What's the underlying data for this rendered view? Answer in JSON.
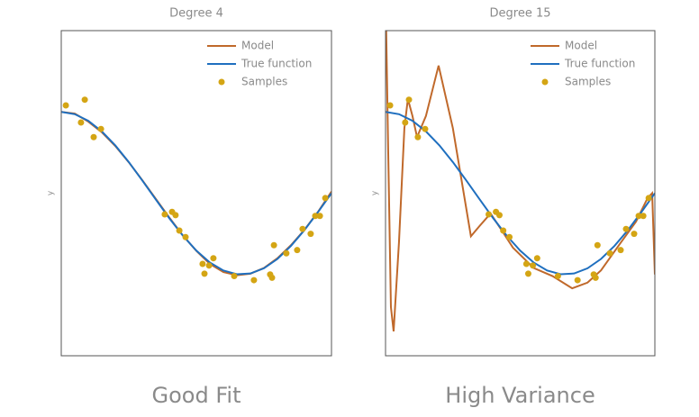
{
  "chart_data": [
    {
      "type": "line",
      "title": "Degree 4",
      "ylabel": "y",
      "caption": "Good Fit",
      "xlim": [
        0,
        1
      ],
      "ylim": [
        -2,
        2
      ],
      "legend": "upper right",
      "series": [
        {
          "name": "Model",
          "color": "#c0692b",
          "x": [
            0,
            0.05,
            0.1,
            0.15,
            0.2,
            0.25,
            0.3,
            0.35,
            0.4,
            0.45,
            0.5,
            0.55,
            0.6,
            0.65,
            0.7,
            0.75,
            0.8,
            0.85,
            0.9,
            0.95,
            1
          ],
          "values": [
            1.0,
            0.98,
            0.88,
            0.75,
            0.58,
            0.38,
            0.16,
            -0.07,
            -0.3,
            -0.52,
            -0.71,
            -0.87,
            -0.97,
            -1.01,
            -0.99,
            -0.92,
            -0.8,
            -0.64,
            -0.45,
            -0.23,
            0.02
          ]
        },
        {
          "name": "True function",
          "color": "#1f6fbf",
          "x": [
            0,
            0.05,
            0.1,
            0.15,
            0.2,
            0.25,
            0.3,
            0.35,
            0.4,
            0.45,
            0.5,
            0.55,
            0.6,
            0.65,
            0.7,
            0.75,
            0.8,
            0.85,
            0.9,
            0.95,
            1
          ],
          "values": [
            1.0,
            0.972,
            0.891,
            0.76,
            0.588,
            0.383,
            0.156,
            -0.078,
            -0.309,
            -0.522,
            -0.707,
            -0.853,
            -0.951,
            -0.997,
            -0.988,
            -0.924,
            -0.809,
            -0.649,
            -0.454,
            -0.233,
            0.0
          ]
        },
        {
          "name": "Samples",
          "color": "#d4a514",
          "marker": "point",
          "x": [
            0.017,
            0.087,
            0.073,
            0.12,
            0.147,
            0.383,
            0.41,
            0.423,
            0.437,
            0.46,
            0.523,
            0.53,
            0.547,
            0.563,
            0.64,
            0.713,
            0.773,
            0.78,
            0.787,
            0.833,
            0.873,
            0.893,
            0.923,
            0.94,
            0.957,
            0.977
          ],
          "values": [
            1.08,
            1.15,
            0.87,
            0.69,
            0.79,
            -0.26,
            -0.23,
            -0.27,
            -0.46,
            -0.54,
            -0.87,
            -0.99,
            -0.89,
            -0.8,
            -1.02,
            -1.07,
            -1.0,
            -1.04,
            -0.64,
            -0.74,
            -0.7,
            -0.44,
            -0.5,
            -0.28,
            -0.28,
            -0.06
          ]
        }
      ]
    },
    {
      "type": "line",
      "title": "Degree 15",
      "ylabel": "y",
      "caption": "High Variance",
      "xlim": [
        0,
        1
      ],
      "ylim": [
        -2,
        2
      ],
      "legend": "upper right",
      "series": [
        {
          "name": "Model",
          "color": "#c0692b",
          "x": [
            0,
            0.01,
            0.02,
            0.03,
            0.05,
            0.07,
            0.083,
            0.1,
            0.117,
            0.15,
            0.197,
            0.25,
            0.317,
            0.35,
            0.39,
            0.43,
            0.473,
            0.55,
            0.62,
            0.693,
            0.75,
            0.8,
            0.873,
            0.93,
            0.973,
            0.99,
            1
          ],
          "values": [
            2.5,
            0.5,
            -1.4,
            -1.7,
            -0.6,
            0.8,
            1.16,
            0.95,
            0.69,
            0.95,
            1.57,
            0.8,
            -0.53,
            -0.4,
            -0.25,
            -0.45,
            -0.67,
            -0.92,
            -1.02,
            -1.17,
            -1.1,
            -0.95,
            -0.61,
            -0.35,
            -0.06,
            0.0,
            -1.0
          ]
        },
        {
          "name": "True function",
          "color": "#1f6fbf",
          "x": [
            0,
            0.05,
            0.1,
            0.15,
            0.2,
            0.25,
            0.3,
            0.35,
            0.4,
            0.45,
            0.5,
            0.55,
            0.6,
            0.65,
            0.7,
            0.75,
            0.8,
            0.85,
            0.9,
            0.95,
            1
          ],
          "values": [
            1.0,
            0.972,
            0.891,
            0.76,
            0.588,
            0.383,
            0.156,
            -0.078,
            -0.309,
            -0.522,
            -0.707,
            -0.853,
            -0.951,
            -0.997,
            -0.988,
            -0.924,
            -0.809,
            -0.649,
            -0.454,
            -0.233,
            0.0
          ]
        },
        {
          "name": "Samples",
          "color": "#d4a514",
          "marker": "point",
          "x": [
            0.017,
            0.087,
            0.073,
            0.12,
            0.147,
            0.383,
            0.41,
            0.423,
            0.437,
            0.46,
            0.523,
            0.53,
            0.547,
            0.563,
            0.64,
            0.713,
            0.773,
            0.78,
            0.787,
            0.833,
            0.873,
            0.893,
            0.923,
            0.94,
            0.957,
            0.977
          ],
          "values": [
            1.08,
            1.15,
            0.87,
            0.69,
            0.79,
            -0.26,
            -0.23,
            -0.27,
            -0.46,
            -0.54,
            -0.87,
            -0.99,
            -0.89,
            -0.8,
            -1.02,
            -1.07,
            -1.0,
            -1.04,
            -0.64,
            -0.74,
            -0.7,
            -0.44,
            -0.5,
            -0.28,
            -0.28,
            -0.06
          ]
        }
      ]
    }
  ]
}
